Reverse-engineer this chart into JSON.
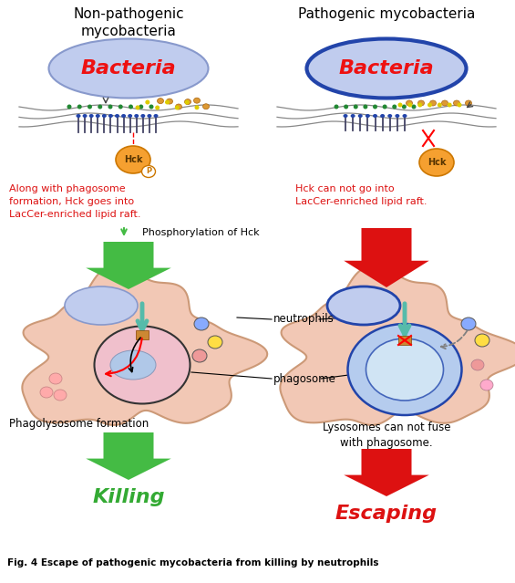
{
  "title_left": "Non-pathogenic\nmycobacteria",
  "title_right": "Pathogenic mycobacteria",
  "caption": "Fig. 4 Escape of pathogenic mycobacteria from killing by neutrophils",
  "bacteria_text": "Bacteria",
  "bacteria_color_left": "#c0ccee",
  "bacteria_color_right": "#6688dd",
  "bacteria_border_left": "#8899cc",
  "bacteria_border_right": "#2244aa",
  "bacteria_text_color": "#ee1111",
  "hck_color": "#f5a030",
  "hck_border_color": "#cc7700",
  "red_text_left": "Along with phagosome\nformation, Hck goes into\nLacCer-enriched lipid raft.",
  "red_text_right": "Hck can not go into\nLacCer-enriched lipid raft.",
  "green_label_left": "Phosphorylation of Hck",
  "cell_color": "#f2c8b5",
  "cell_border": "#cc9977",
  "phagosome_color_left": "#f0c0cc",
  "phagosome_border_left": "#888888",
  "nucleus_color": "#c0ccee",
  "nucleus_border_left": "#8899cc",
  "nucleus_border_right": "#2244aa",
  "neutrophils_label": "neutrophils",
  "phagosome_label": "phagosome",
  "bottom_label_left": "Phagolysosome formation",
  "bottom_label_right": "Lysosomes can not fuse\nwith phagosome.",
  "killing_text": "Killing",
  "escaping_text": "Escaping",
  "killing_color": "#33aa33",
  "escaping_color": "#dd1111",
  "green_arrow_color": "#44bb44",
  "red_arrow_color": "#dd1111",
  "lyso_colors": [
    "#88aaff",
    "#ffdd44",
    "#ee8888"
  ],
  "bg_color": "#ffffff",
  "membrane_color": "#888888",
  "receptor_color": "#2255aa",
  "ligand_chain_color": "#cc8822",
  "green_receptor_color": "#228833",
  "yellow_dot_color": "#ddcc00",
  "teal_arrow_color": "#55bbaa"
}
